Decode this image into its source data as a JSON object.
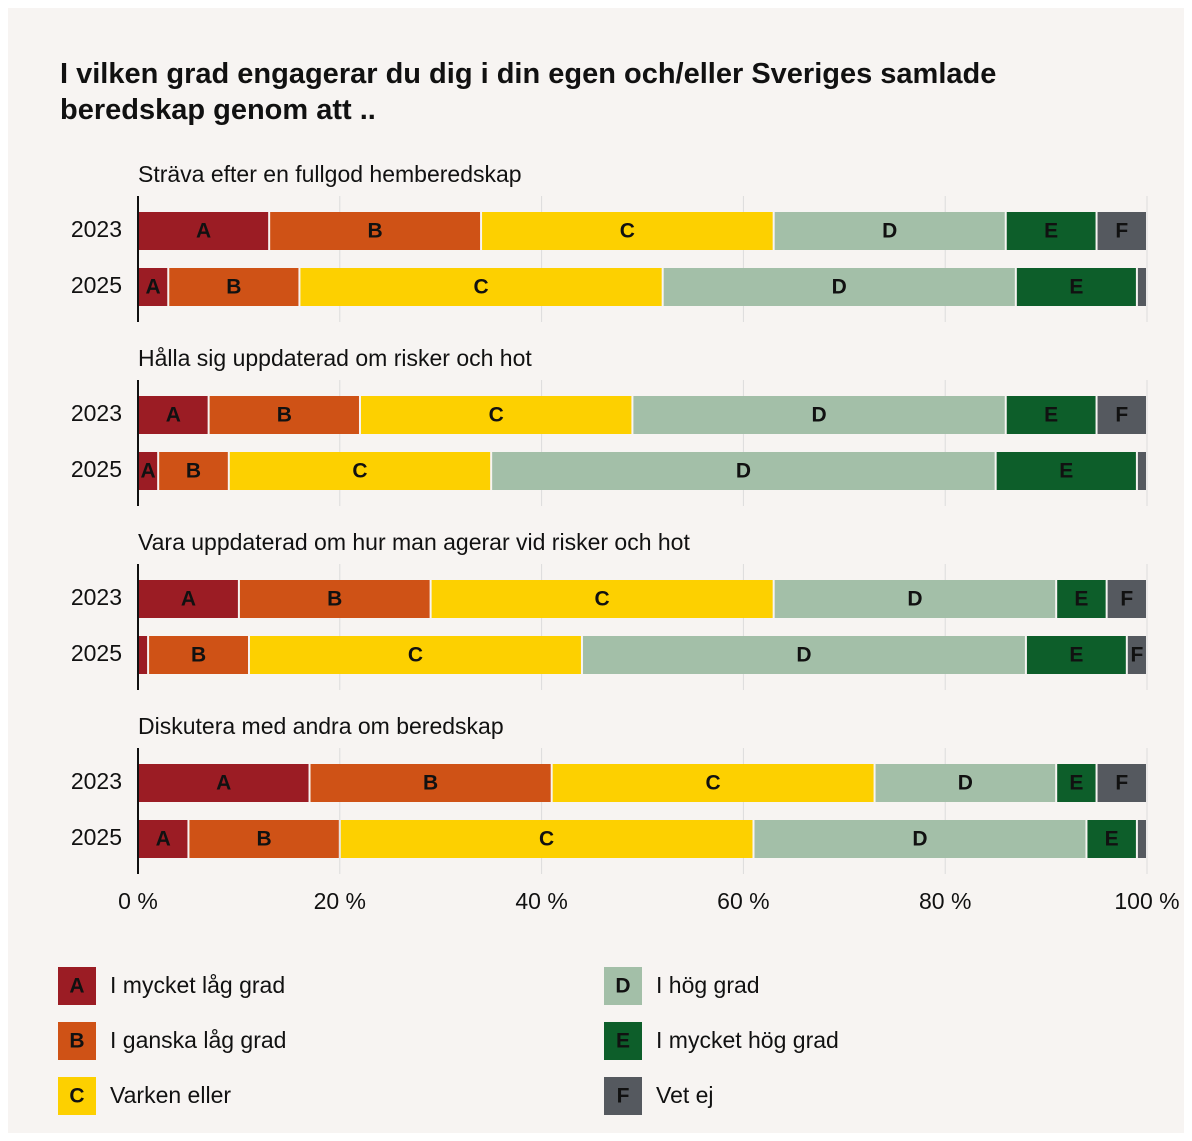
{
  "chart_data": {
    "type": "bar",
    "orientation": "horizontal",
    "stacked": true,
    "title": "I vilken grad engagerar du dig i din egen och/eller Sveriges samlade beredskap genom att ..",
    "panels": [
      {
        "title": "Sträva efter en fullgod hemberedskap",
        "categories": [
          "2023",
          "2025"
        ]
      },
      {
        "title": "Hålla sig uppdaterad om risker och hot",
        "categories": [
          "2023",
          "2025"
        ]
      },
      {
        "title": "Vara uppdaterad om hur man agerar vid risker och hot",
        "categories": [
          "2023",
          "2025"
        ]
      },
      {
        "title": "Diskutera med andra om beredskap",
        "categories": [
          "2023",
          "2025"
        ]
      }
    ],
    "series": [
      {
        "code": "A",
        "name": "I mycket låg grad",
        "color": "#9b1c24",
        "values": [
          [
            13,
            3
          ],
          [
            7,
            2
          ],
          [
            10,
            1
          ],
          [
            17,
            5
          ]
        ]
      },
      {
        "code": "B",
        "name": "I ganska låg grad",
        "color": "#cf5216",
        "values": [
          [
            21,
            13
          ],
          [
            15,
            7
          ],
          [
            19,
            10
          ],
          [
            24,
            15
          ]
        ]
      },
      {
        "code": "C",
        "name": "Varken eller",
        "color": "#fdd000",
        "values": [
          [
            29,
            36
          ],
          [
            27,
            26
          ],
          [
            34,
            33
          ],
          [
            32,
            41
          ]
        ]
      },
      {
        "code": "D",
        "name": "I hög grad",
        "color": "#a3bfa8",
        "values": [
          [
            23,
            35
          ],
          [
            37,
            50
          ],
          [
            28,
            44
          ],
          [
            18,
            33
          ]
        ]
      },
      {
        "code": "E",
        "name": "I mycket hög grad",
        "color": "#0d5e2a",
        "values": [
          [
            9,
            12
          ],
          [
            9,
            14
          ],
          [
            5,
            10
          ],
          [
            4,
            5
          ]
        ]
      },
      {
        "code": "F",
        "name": "Vet ej",
        "color": "#55595f",
        "values": [
          [
            5,
            1
          ],
          [
            5,
            1
          ],
          [
            4,
            2
          ],
          [
            5,
            1
          ]
        ]
      }
    ],
    "xlim": [
      0,
      100
    ],
    "xticks": [
      {
        "value": 0,
        "label": "0 %"
      },
      {
        "value": 20,
        "label": "20 %"
      },
      {
        "value": 40,
        "label": "40 %"
      },
      {
        "value": 60,
        "label": "60 %"
      },
      {
        "value": 80,
        "label": "80 %"
      },
      {
        "value": 100,
        "label": "100 %"
      }
    ],
    "grid": true
  }
}
